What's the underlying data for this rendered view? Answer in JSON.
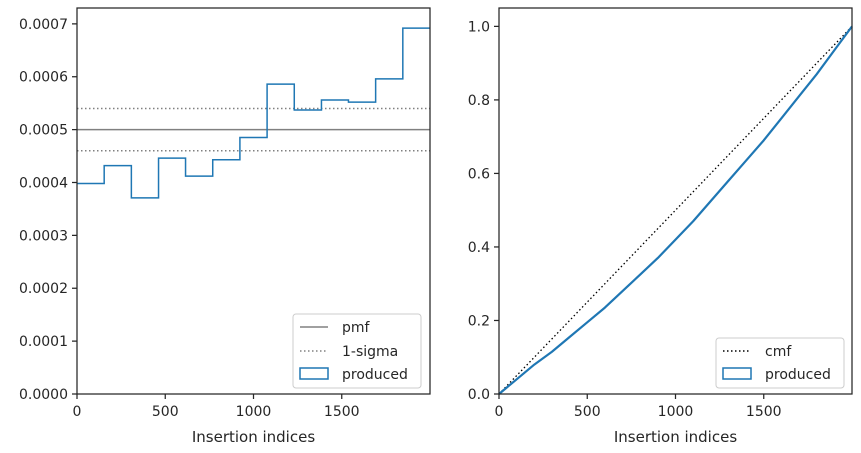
{
  "colors": {
    "produced": "#1f77b4",
    "pmf": "#808080",
    "sigma": "#808080",
    "cmf": "#000000",
    "axes": "#262626"
  },
  "chart_data": [
    {
      "type": "line",
      "subtype": "histogram-step",
      "xlabel": "Insertion indices",
      "ylabel": "",
      "xlim": [
        0,
        2000
      ],
      "ylim": [
        0,
        0.00073
      ],
      "xticks": [
        0,
        500,
        1000,
        1500
      ],
      "xtick_labels": [
        "0",
        "500",
        "1000",
        "1500"
      ],
      "yticks": [
        0,
        0.0001,
        0.0002,
        0.0003,
        0.0004,
        0.0005,
        0.0006,
        0.0007
      ],
      "ytick_labels": [
        "0.0000",
        "0.0001",
        "0.0002",
        "0.0003",
        "0.0004",
        "0.0005",
        "0.0006",
        "0.0007"
      ],
      "grid": false,
      "legend_position": "lower right",
      "pmf": 0.0005,
      "sigma_band": [
        0.00046,
        0.00054
      ],
      "series": [
        {
          "name": "produced",
          "style": "step",
          "bin_edges": [
            0,
            154,
            308,
            462,
            615,
            769,
            923,
            1077,
            1231,
            1385,
            1538,
            1692,
            1846,
            2000
          ],
          "values": [
            0.000398,
            0.000432,
            0.000371,
            0.000446,
            0.000412,
            0.000443,
            0.000485,
            0.000586,
            0.000537,
            0.000556,
            0.000552,
            0.000596,
            0.000692
          ]
        },
        {
          "name": "pmf",
          "style": "solid",
          "values": [
            0.0005
          ]
        },
        {
          "name": "1-sigma",
          "style": "dotted",
          "values": [
            0.00046,
            0.00054
          ]
        }
      ],
      "legend": [
        "pmf",
        "1-sigma",
        "produced"
      ]
    },
    {
      "type": "line",
      "subtype": "cumulative",
      "xlabel": "Insertion indices",
      "ylabel": "",
      "xlim": [
        0,
        2000
      ],
      "ylim": [
        0,
        1.05
      ],
      "xticks": [
        0,
        500,
        1000,
        1500
      ],
      "xtick_labels": [
        "0",
        "500",
        "1000",
        "1500"
      ],
      "yticks": [
        0,
        0.2,
        0.4,
        0.6,
        0.8,
        1.0
      ],
      "ytick_labels": [
        "0.0",
        "0.2",
        "0.4",
        "0.6",
        "0.8",
        "1.0"
      ],
      "grid": false,
      "legend_position": "lower right",
      "series": [
        {
          "name": "cmf",
          "style": "dotted",
          "x": [
            0,
            2000
          ],
          "y": [
            0,
            1.0
          ]
        },
        {
          "name": "produced",
          "style": "solid",
          "x": [
            0,
            100,
            200,
            300,
            400,
            500,
            600,
            700,
            800,
            900,
            1000,
            1100,
            1200,
            1300,
            1400,
            1500,
            1600,
            1700,
            1800,
            1900,
            2000
          ],
          "y": [
            0,
            0.04,
            0.08,
            0.115,
            0.155,
            0.195,
            0.235,
            0.28,
            0.325,
            0.37,
            0.42,
            0.47,
            0.525,
            0.58,
            0.635,
            0.69,
            0.75,
            0.81,
            0.87,
            0.935,
            1.0
          ]
        }
      ],
      "legend": [
        "cmf",
        "produced"
      ]
    }
  ]
}
